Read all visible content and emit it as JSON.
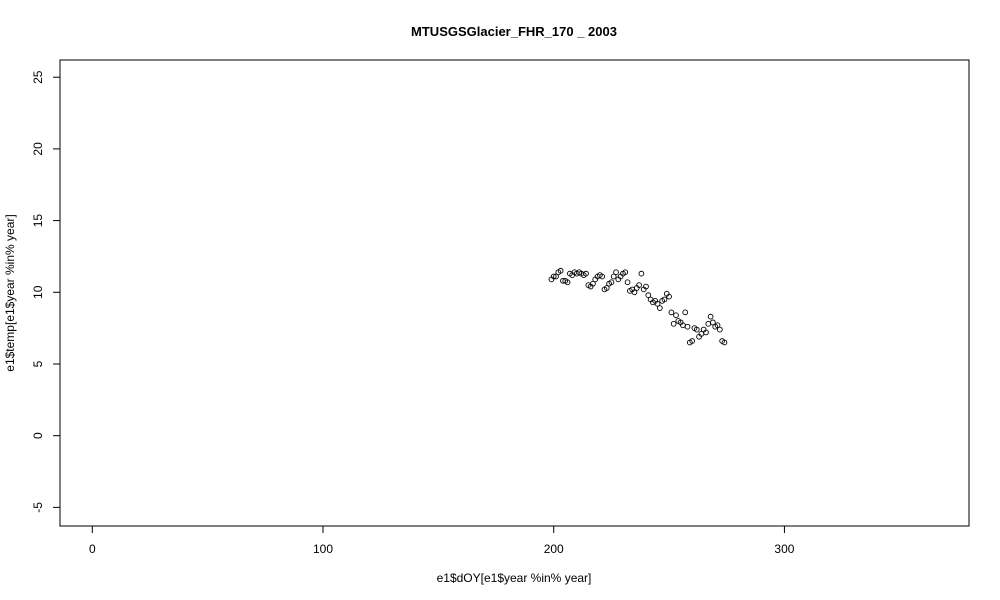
{
  "chart_data": {
    "type": "scatter",
    "title": "MTUSGSGlacier_FHR_170 _ 2003",
    "xlabel": "e1$dOY[e1$year %in% year]",
    "ylabel": "e1$temp[e1$year %in% year]",
    "xlim": [
      -14,
      380
    ],
    "ylim": [
      -6.3,
      26.2
    ],
    "xticks": [
      0,
      100,
      200,
      300
    ],
    "yticks": [
      -5,
      0,
      5,
      10,
      15,
      20,
      25
    ],
    "grid": false,
    "marker": "open-circle",
    "x": [
      199,
      200,
      201,
      202,
      203,
      204,
      205,
      206,
      207,
      208,
      209,
      210,
      211,
      212,
      213,
      214,
      215,
      216,
      217,
      218,
      219,
      220,
      221,
      222,
      223,
      224,
      225,
      226,
      227,
      228,
      229,
      230,
      231,
      232,
      233,
      234,
      235,
      236,
      237,
      238,
      239,
      240,
      241,
      242,
      243,
      244,
      245,
      246,
      247,
      248,
      249,
      250,
      251,
      252,
      253,
      254,
      255,
      256,
      257,
      258,
      259,
      260,
      261,
      262,
      263,
      264,
      265,
      266,
      267,
      268,
      269,
      270,
      271,
      272,
      273,
      274
    ],
    "y": [
      10.9,
      11.1,
      11.1,
      11.4,
      11.5,
      10.8,
      10.8,
      10.7,
      11.3,
      11.2,
      11.4,
      11.3,
      11.4,
      11.3,
      11.2,
      11.3,
      10.5,
      10.4,
      10.6,
      10.9,
      11.1,
      11.2,
      11.1,
      10.2,
      10.3,
      10.6,
      10.7,
      11.1,
      11.4,
      10.9,
      11.1,
      11.3,
      11.4,
      10.7,
      10.1,
      10.2,
      10.0,
      10.3,
      10.5,
      11.3,
      10.2,
      10.4,
      9.8,
      9.5,
      9.3,
      9.4,
      9.2,
      8.9,
      9.4,
      9.5,
      9.9,
      9.7,
      8.6,
      7.8,
      8.4,
      8.0,
      7.9,
      7.7,
      8.6,
      7.6,
      6.5,
      6.6,
      7.5,
      7.4,
      6.9,
      7.1,
      7.4,
      7.2,
      7.8,
      8.3,
      7.9,
      7.6,
      7.7,
      7.4,
      6.6,
      6.5
    ]
  }
}
